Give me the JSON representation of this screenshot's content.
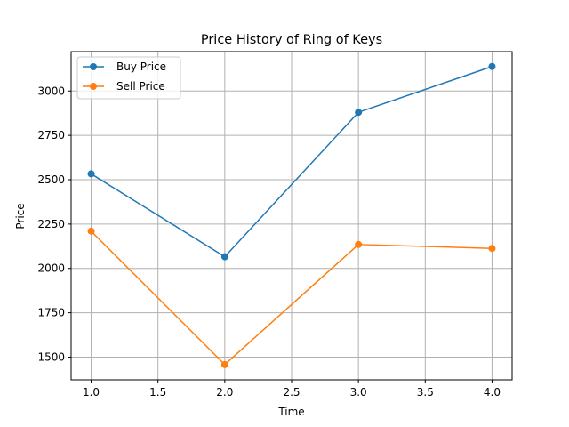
{
  "chart_data": {
    "type": "line",
    "title": "Price History of Ring of Keys",
    "xlabel": "Time",
    "ylabel": "Price",
    "x": [
      1.0,
      2.0,
      3.0,
      4.0
    ],
    "xlim": [
      0.85,
      4.15
    ],
    "ylim": [
      1372,
      3222
    ],
    "x_ticks": [
      1.0,
      1.5,
      2.0,
      2.5,
      3.0,
      3.5,
      4.0
    ],
    "x_tick_labels": [
      "1.0",
      "1.5",
      "2.0",
      "2.5",
      "3.0",
      "3.5",
      "4.0"
    ],
    "y_ticks": [
      1500,
      1750,
      2000,
      2250,
      2500,
      2750,
      3000
    ],
    "y_tick_labels": [
      "1500",
      "1750",
      "2000",
      "2250",
      "2500",
      "2750",
      "3000"
    ],
    "grid": true,
    "legend_position": "top-left",
    "series": [
      {
        "name": "Buy Price",
        "color": "#1f77b4",
        "marker": "circle",
        "values": [
          2533,
          2066,
          2880,
          3138
        ]
      },
      {
        "name": "Sell Price",
        "color": "#ff7f0e",
        "marker": "circle",
        "values": [
          2210,
          1458,
          2135,
          2113
        ]
      }
    ]
  }
}
